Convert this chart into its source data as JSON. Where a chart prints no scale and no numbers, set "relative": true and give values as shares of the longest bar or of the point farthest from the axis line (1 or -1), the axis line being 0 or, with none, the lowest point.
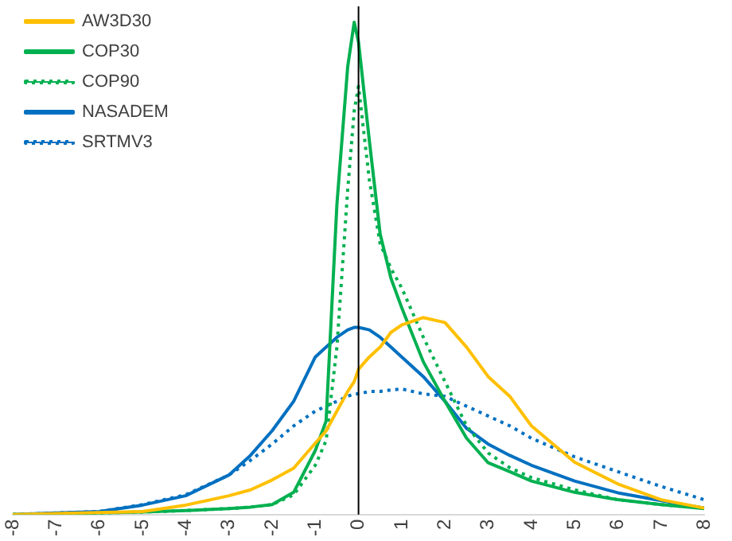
{
  "chart_data": {
    "type": "line",
    "relative": true,
    "x": [
      -8,
      -7,
      -6,
      -5,
      -4,
      -3,
      -2.5,
      -2,
      -1.5,
      -1,
      -0.75,
      -0.5,
      -0.25,
      -0.1,
      0,
      0.25,
      0.5,
      0.75,
      1,
      1.5,
      2,
      2.5,
      3,
      3.5,
      4,
      5,
      6,
      7,
      8
    ],
    "xlim": [
      -8,
      8
    ],
    "xticks": [
      -8,
      -7,
      -6,
      -5,
      -4,
      -3,
      -2,
      -1,
      0,
      1,
      2,
      3,
      4,
      5,
      6,
      7,
      8
    ],
    "series": [
      {
        "name": "AW3D30",
        "color": "#ffc000",
        "line_style": "solid",
        "values": [
          0,
          0.002,
          0.004,
          0.006,
          0.019,
          0.038,
          0.05,
          0.07,
          0.094,
          0.145,
          0.17,
          0.21,
          0.25,
          0.27,
          0.295,
          0.32,
          0.34,
          0.37,
          0.385,
          0.4,
          0.39,
          0.34,
          0.28,
          0.24,
          0.18,
          0.106,
          0.062,
          0.03,
          0.013
        ]
      },
      {
        "name": "COP30",
        "color": "#00b050",
        "line_style": "solid",
        "values": [
          0,
          0,
          0.003,
          0.005,
          0.008,
          0.012,
          0.015,
          0.02,
          0.045,
          0.13,
          0.19,
          0.63,
          0.91,
          1,
          0.96,
          0.76,
          0.57,
          0.48,
          0.42,
          0.31,
          0.23,
          0.155,
          0.105,
          0.087,
          0.068,
          0.045,
          0.03,
          0.02,
          0.012
        ]
      },
      {
        "name": "COP90",
        "color": "#00b050",
        "line_style": "dotted",
        "values": [
          0,
          0,
          0.003,
          0.005,
          0.008,
          0.012,
          0.015,
          0.02,
          0.04,
          0.1,
          0.15,
          0.34,
          0.66,
          0.82,
          0.87,
          0.68,
          0.55,
          0.5,
          0.46,
          0.36,
          0.27,
          0.18,
          0.125,
          0.095,
          0.075,
          0.05,
          0.03,
          0.02,
          0.013
        ]
      },
      {
        "name": "NASADEM",
        "color": "#0070c0",
        "line_style": "solid",
        "values": [
          0,
          0.003,
          0.006,
          0.019,
          0.038,
          0.08,
          0.12,
          0.17,
          0.23,
          0.32,
          0.34,
          0.36,
          0.375,
          0.38,
          0.38,
          0.375,
          0.36,
          0.34,
          0.32,
          0.28,
          0.23,
          0.175,
          0.143,
          0.12,
          0.1,
          0.068,
          0.044,
          0.028,
          0.013
        ]
      },
      {
        "name": "SRTMV3",
        "color": "#0070c0",
        "line_style": "dotted",
        "values": [
          0,
          0.003,
          0.006,
          0.02,
          0.04,
          0.08,
          0.11,
          0.143,
          0.18,
          0.21,
          0.22,
          0.23,
          0.24,
          0.245,
          0.245,
          0.25,
          0.25,
          0.253,
          0.255,
          0.245,
          0.24,
          0.22,
          0.2,
          0.18,
          0.155,
          0.117,
          0.087,
          0.057,
          0.03
        ]
      }
    ],
    "ref_lines": [
      {
        "axis": "x",
        "value": 0,
        "color": "#000000"
      }
    ],
    "grid": false,
    "legend": "top left",
    "marker": "none"
  }
}
